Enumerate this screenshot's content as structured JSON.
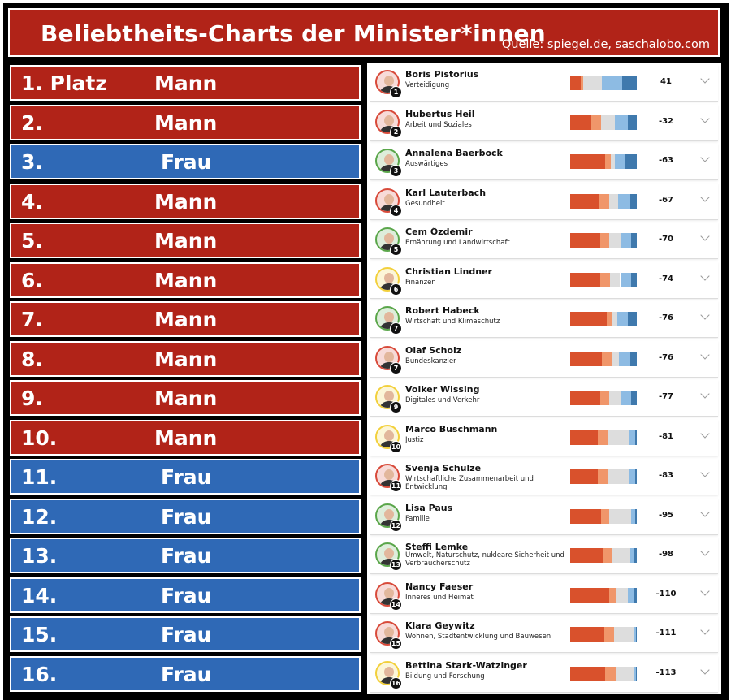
{
  "header": {
    "title": "Beliebtheits-Charts der Minister*innen",
    "source": "Quelle: spiegel.de, saschalobo.com"
  },
  "colors": {
    "mann": "#b12318",
    "frau": "#2f69b6",
    "bar_segments": [
      "#d9512c",
      "#f0966a",
      "#dddddd",
      "#8dbbe3",
      "#3f79ad"
    ]
  },
  "rank_rows": [
    {
      "rank": "1. Platz",
      "gender": "Mann"
    },
    {
      "rank": "2.",
      "gender": "Mann"
    },
    {
      "rank": "3.",
      "gender": "Frau"
    },
    {
      "rank": "4.",
      "gender": "Mann"
    },
    {
      "rank": "5.",
      "gender": "Mann"
    },
    {
      "rank": "6.",
      "gender": "Mann"
    },
    {
      "rank": "7.",
      "gender": "Mann"
    },
    {
      "rank": "8.",
      "gender": "Mann"
    },
    {
      "rank": "9.",
      "gender": "Mann"
    },
    {
      "rank": "10.",
      "gender": "Mann"
    },
    {
      "rank": "11.",
      "gender": "Frau"
    },
    {
      "rank": "12.",
      "gender": "Frau"
    },
    {
      "rank": "13.",
      "gender": "Frau"
    },
    {
      "rank": "14.",
      "gender": "Frau"
    },
    {
      "rank": "15.",
      "gender": "Frau"
    },
    {
      "rank": "16.",
      "gender": "Frau"
    }
  ],
  "chart_data": {
    "type": "table",
    "series_note": "",
    "rows": [
      {
        "name": "Boris Pistorius",
        "dept": "Verteidigung",
        "badge": "1",
        "score": "41",
        "ring": "#d84a3a",
        "shares": [
          0.16,
          0.04,
          0.28,
          0.3,
          0.22
        ]
      },
      {
        "name": "Hubertus Heil",
        "dept": "Arbeit und Soziales",
        "badge": "2",
        "score": "-32",
        "ring": "#d84a3a",
        "shares": [
          0.32,
          0.14,
          0.21,
          0.2,
          0.13
        ]
      },
      {
        "name": "Annalena Baerbock",
        "dept": "Auswärtiges",
        "badge": "3",
        "score": "-63",
        "ring": "#5aa64a",
        "shares": [
          0.52,
          0.09,
          0.06,
          0.15,
          0.18
        ]
      },
      {
        "name": "Karl Lauterbach",
        "dept": "Gesundheit",
        "badge": "4",
        "score": "-67",
        "ring": "#d84a3a",
        "shares": [
          0.44,
          0.14,
          0.14,
          0.18,
          0.1
        ]
      },
      {
        "name": "Cem Özdemir",
        "dept": "Ernährung und Landwirtschaft",
        "badge": "5",
        "score": "-70",
        "ring": "#5aa64a",
        "shares": [
          0.45,
          0.13,
          0.18,
          0.15,
          0.09
        ]
      },
      {
        "name": "Christian Lindner",
        "dept": "Finanzen",
        "badge": "6",
        "score": "-74",
        "ring": "#f2d03c",
        "shares": [
          0.45,
          0.15,
          0.15,
          0.16,
          0.09
        ]
      },
      {
        "name": "Robert Habeck",
        "dept": "Wirtschaft und Klimaschutz",
        "badge": "7",
        "score": "-76",
        "ring": "#5aa64a",
        "shares": [
          0.55,
          0.09,
          0.07,
          0.16,
          0.13
        ]
      },
      {
        "name": "Olaf Scholz",
        "dept": "Bundeskanzler",
        "badge": "7",
        "score": "-76",
        "ring": "#d84a3a",
        "shares": [
          0.48,
          0.14,
          0.11,
          0.17,
          0.1
        ]
      },
      {
        "name": "Volker Wissing",
        "dept": "Digitales und Verkehr",
        "badge": "9",
        "score": "-77",
        "ring": "#f2d03c",
        "shares": [
          0.45,
          0.14,
          0.18,
          0.14,
          0.09
        ]
      },
      {
        "name": "Marco Buschmann",
        "dept": "Justiz",
        "badge": "10",
        "score": "-81",
        "ring": "#f2d03c",
        "shares": [
          0.41,
          0.16,
          0.31,
          0.09,
          0.03
        ]
      },
      {
        "name": "Svenja Schulze",
        "dept": "Wirtschaftliche Zusammenarbeit und Entwicklung",
        "badge": "11",
        "score": "-83",
        "ring": "#d84a3a",
        "shares": [
          0.42,
          0.14,
          0.33,
          0.08,
          0.03
        ]
      },
      {
        "name": "Lisa Paus",
        "dept": "Familie",
        "badge": "12",
        "score": "-95",
        "ring": "#5aa64a",
        "shares": [
          0.46,
          0.12,
          0.34,
          0.05,
          0.03
        ]
      },
      {
        "name": "Steffi Lemke",
        "dept": "Umwelt, Naturschutz, nukleare Sicherheit und Verbraucherschutz",
        "badge": "13",
        "score": "-98",
        "ring": "#5aa64a",
        "shares": [
          0.5,
          0.14,
          0.26,
          0.06,
          0.04
        ]
      },
      {
        "name": "Nancy Faeser",
        "dept": "Inneres und Heimat",
        "badge": "14",
        "score": "-110",
        "ring": "#d84a3a",
        "shares": [
          0.58,
          0.11,
          0.17,
          0.1,
          0.04
        ]
      },
      {
        "name": "Klara Geywitz",
        "dept": "Wohnen, Stadtentwicklung und Bauwesen",
        "badge": "15",
        "score": "-111",
        "ring": "#d84a3a",
        "shares": [
          0.51,
          0.15,
          0.3,
          0.03,
          0.01
        ]
      },
      {
        "name": "Bettina Stark-Watzinger",
        "dept": "Bildung und Forschung",
        "badge": "16",
        "score": "-113",
        "ring": "#f2d03c",
        "shares": [
          0.52,
          0.17,
          0.27,
          0.03,
          0.01
        ]
      }
    ]
  }
}
